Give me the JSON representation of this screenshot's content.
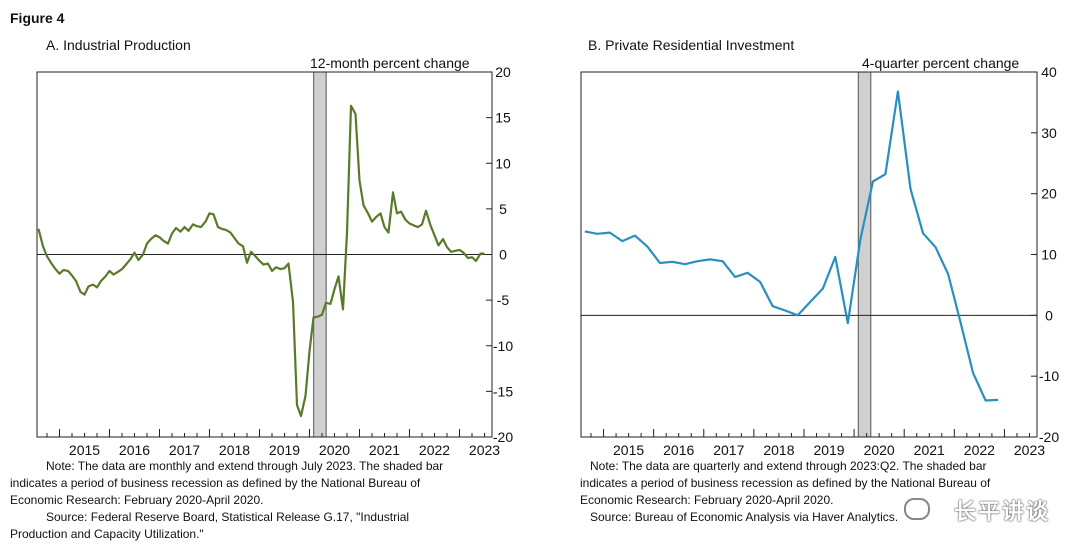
{
  "figure_title": "Figure 4",
  "panels": [
    {
      "title": "A. Industrial Production",
      "unit": "12-month percent change",
      "note": "Note: The data are monthly and extend through July 2023. The shaded bar indicates a period of business recession as defined by the National Bureau of Economic Research: February 2020-April 2020.",
      "source": "Source: Federal Reserve Board, Statistical Release G.17, \"Industrial Production and Capacity Utilization.\""
    },
    {
      "title": "B. Private Residential Investment",
      "unit": "4-quarter percent change",
      "note": "Note: The data are quarterly and extend through 2023:Q2. The shaded bar indicates a period of business recession as defined by the National Bureau of Economic Research: February 2020-April 2020.",
      "source": "Source: Bureau of Economic Analysis via Haver Analytics."
    }
  ],
  "watermark": "长平讲谈",
  "chart_data": [
    {
      "type": "line",
      "title": "A. Industrial Production",
      "ylabel": "12-month percent change",
      "ylim": [
        -20,
        20
      ],
      "yticks": [
        -20,
        -15,
        -10,
        -5,
        0,
        5,
        10,
        15,
        20
      ],
      "xlim": [
        2014.55,
        2023.65
      ],
      "xticks": [
        "2015",
        "2016",
        "2017",
        "2018",
        "2019",
        "2020",
        "2021",
        "2022",
        "2023"
      ],
      "recession": [
        "2020-02",
        "2020-04"
      ],
      "line_color": "#5a7a2a",
      "series": [
        {
          "x": [
            2014.58,
            2014.67,
            2014.75,
            2014.83,
            2014.92,
            2015.0,
            2015.08,
            2015.17,
            2015.25,
            2015.33,
            2015.42,
            2015.5,
            2015.58,
            2015.67,
            2015.75,
            2015.83,
            2015.92,
            2016.0,
            2016.08,
            2016.17,
            2016.25,
            2016.33,
            2016.42,
            2016.5,
            2016.58,
            2016.67,
            2016.75,
            2016.83,
            2016.92,
            2017.0,
            2017.08,
            2017.17,
            2017.25,
            2017.33,
            2017.42,
            2017.5,
            2017.58,
            2017.67,
            2017.75,
            2017.83,
            2017.92,
            2018.0,
            2018.08,
            2018.17,
            2018.25,
            2018.33,
            2018.42,
            2018.5,
            2018.58,
            2018.67,
            2018.75,
            2018.83,
            2018.92,
            2019.0,
            2019.08,
            2019.17,
            2019.25,
            2019.33,
            2019.42,
            2019.5,
            2019.58,
            2019.67,
            2019.75,
            2019.83,
            2019.92,
            2020.0,
            2020.08,
            2020.17,
            2020.25,
            2020.33,
            2020.42,
            2020.5,
            2020.58,
            2020.67,
            2020.75,
            2020.83,
            2020.92,
            2021.0,
            2021.08,
            2021.17,
            2021.25,
            2021.33,
            2021.42,
            2021.5,
            2021.58,
            2021.67,
            2021.75,
            2021.83,
            2021.92,
            2022.0,
            2022.08,
            2022.17,
            2022.25,
            2022.33,
            2022.42,
            2022.5,
            2022.58,
            2022.67,
            2022.75,
            2022.83,
            2022.92,
            2023.0,
            2023.08,
            2023.17,
            2023.25,
            2023.33,
            2023.42,
            2023.5
          ],
          "y": [
            2.8,
            0.9,
            -0.2,
            -0.9,
            -1.6,
            -2.1,
            -1.7,
            -1.8,
            -2.3,
            -2.9,
            -4.1,
            -4.4,
            -3.5,
            -3.3,
            -3.6,
            -2.9,
            -2.4,
            -1.8,
            -2.2,
            -1.9,
            -1.6,
            -1.1,
            -0.5,
            0.2,
            -0.6,
            0.0,
            1.2,
            1.7,
            2.1,
            1.9,
            1.5,
            1.2,
            2.3,
            2.9,
            2.5,
            3.0,
            2.6,
            3.3,
            3.1,
            3.0,
            3.6,
            4.5,
            4.4,
            3.0,
            2.8,
            2.7,
            2.4,
            1.8,
            1.2,
            0.9,
            -0.9,
            0.3,
            -0.2,
            -0.7,
            -1.1,
            -1.0,
            -1.8,
            -1.4,
            -1.6,
            -1.5,
            -1.0,
            -5.2,
            -16.5,
            -17.7,
            -15.5,
            -10.6,
            -6.9,
            -6.8,
            -6.6,
            -5.3,
            -5.4,
            -3.8,
            -2.4,
            -6.0,
            2.4,
            16.3,
            15.4,
            8.1,
            5.4,
            4.5,
            3.6,
            4.1,
            4.5,
            3.0,
            2.4,
            6.8,
            4.5,
            4.7,
            3.8,
            3.4,
            3.2,
            3.0,
            3.3,
            4.8,
            3.2,
            2.1,
            1.0,
            1.7,
            0.8,
            0.3,
            0.4,
            0.5,
            0.2,
            -0.4,
            -0.3,
            -0.7,
            0.1,
            0.1
          ]
        }
      ]
    },
    {
      "type": "line",
      "title": "B. Private Residential Investment",
      "ylabel": "4-quarter percent change",
      "ylim": [
        -20,
        40
      ],
      "yticks": [
        -20,
        -10,
        0,
        10,
        20,
        30,
        40
      ],
      "xlim": [
        2014.55,
        2023.65
      ],
      "xticks": [
        "2015",
        "2016",
        "2017",
        "2018",
        "2019",
        "2020",
        "2021",
        "2022",
        "2023"
      ],
      "recession": [
        "2020-02",
        "2020-04"
      ],
      "line_color": "#2a8fbf",
      "series": [
        {
          "x": [
            2014.625,
            2014.875,
            2015.125,
            2015.375,
            2015.625,
            2015.875,
            2016.125,
            2016.375,
            2016.625,
            2016.875,
            2017.125,
            2017.375,
            2017.625,
            2017.875,
            2018.125,
            2018.375,
            2018.625,
            2018.875,
            2019.125,
            2019.375,
            2019.625,
            2019.875,
            2020.125,
            2020.375,
            2020.625,
            2020.875,
            2021.125,
            2021.375,
            2021.625,
            2021.875,
            2022.125,
            2022.375,
            2022.625,
            2022.875,
            2023.125,
            2023.375
          ],
          "y": [
            13.8,
            13.4,
            13.6,
            12.2,
            13.1,
            11.3,
            8.6,
            8.8,
            8.4,
            8.9,
            9.2,
            8.9,
            6.3,
            7.0,
            5.5,
            1.5,
            0.8,
            0.0,
            2.2,
            4.4,
            9.6,
            -1.3,
            12.5,
            22.0,
            23.2,
            36.8,
            20.8,
            13.5,
            11.2,
            6.8,
            -1.2,
            -9.5,
            -14.0,
            -13.9,
            null,
            null
          ]
        }
      ]
    }
  ]
}
